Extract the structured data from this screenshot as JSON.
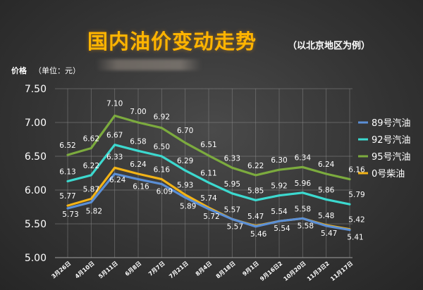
{
  "header": {
    "title": "国内油价变动走势",
    "subtitle": "（以北京地区为例）"
  },
  "colors": {
    "background": "#333333",
    "title": "#ffb400",
    "grid": "#8a8a8a"
  },
  "chart_data": {
    "type": "line",
    "title": "国内油价变动走势",
    "subtitle": "（以北京地区为例）",
    "ylabel": "价格",
    "yunit": "（单位：元）",
    "ylim": [
      5.0,
      7.5
    ],
    "yticks": [
      "5.00",
      "5.50",
      "6.00",
      "6.50",
      "7.00",
      "7.50"
    ],
    "grid": true,
    "legend_position": "right",
    "categories": [
      "3月26日",
      "4月10日",
      "5月11日",
      "6月8日",
      "7月7日",
      "7月21日",
      "8月4日",
      "8月18日",
      "9月1日",
      "9月16日2",
      "10月20日",
      "11月3日2",
      "11月17日"
    ],
    "series": [
      {
        "name": "89号汽油",
        "color": "#5b8fd6",
        "values": [
          5.73,
          5.82,
          6.24,
          6.16,
          6.09,
          5.89,
          5.72,
          5.57,
          5.46,
          5.54,
          5.58,
          5.47,
          5.41
        ]
      },
      {
        "name": "92号汽油",
        "color": "#3cd9cf",
        "values": [
          6.13,
          6.22,
          6.67,
          6.58,
          6.5,
          6.29,
          6.11,
          5.95,
          5.85,
          5.92,
          5.96,
          5.86,
          5.79
        ]
      },
      {
        "name": "95号汽油",
        "color": "#7cab3e",
        "values": [
          6.52,
          6.62,
          7.1,
          7.0,
          6.92,
          6.7,
          6.51,
          6.33,
          6.22,
          6.3,
          6.34,
          6.24,
          6.16
        ]
      },
      {
        "name": "0号柴油",
        "color": "#f2b317",
        "values": [
          5.77,
          5.87,
          6.33,
          6.24,
          6.16,
          5.93,
          5.74,
          5.57,
          5.47,
          5.54,
          5.58,
          5.48,
          5.42
        ]
      }
    ]
  }
}
